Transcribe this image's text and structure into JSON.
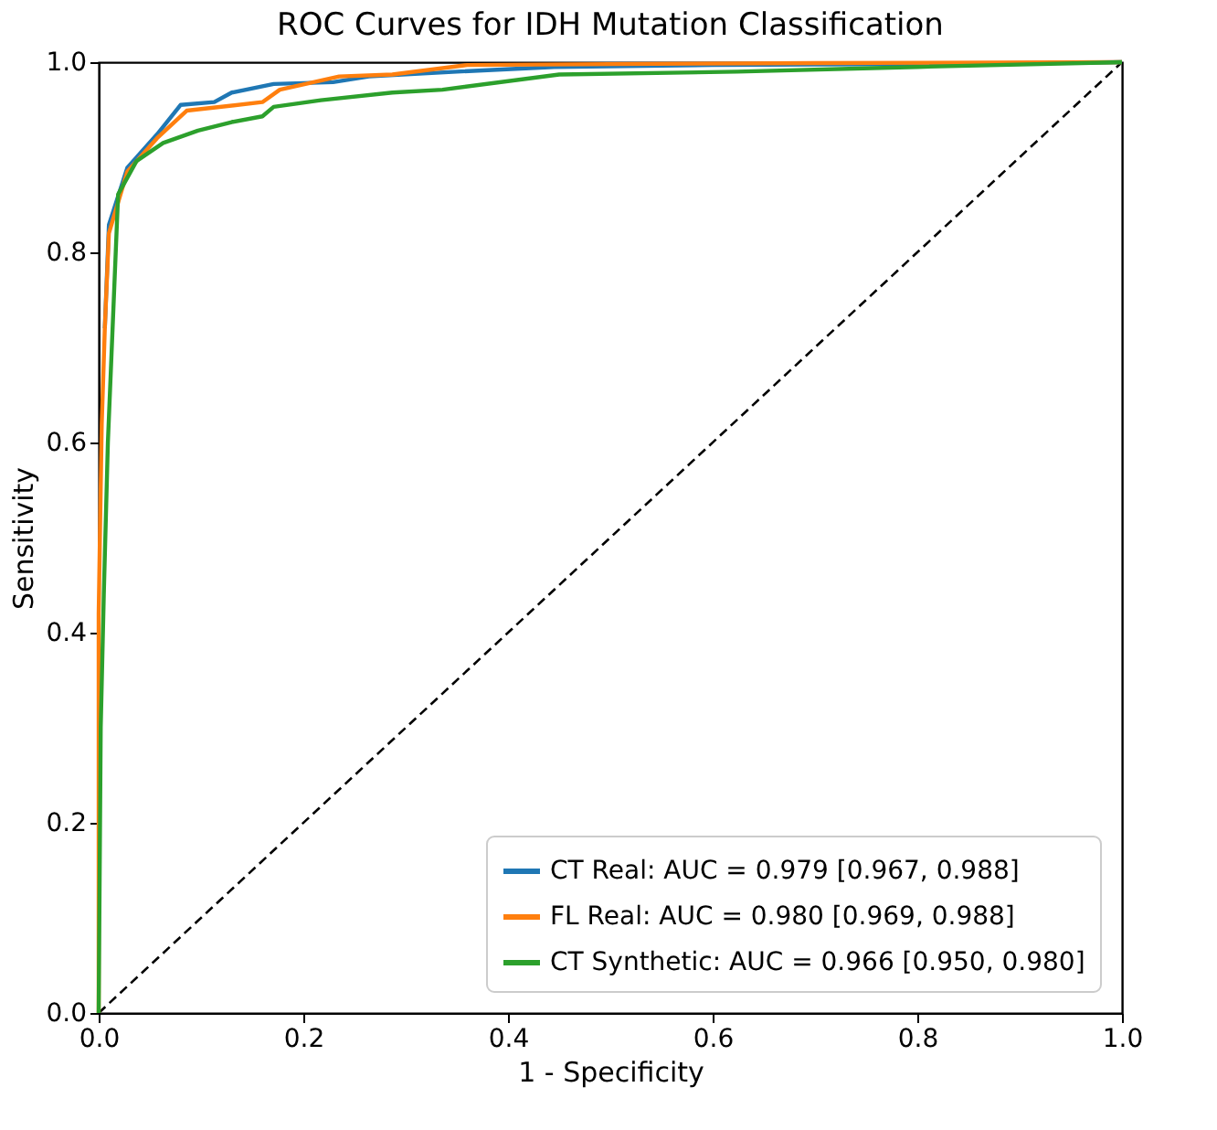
{
  "chart_data": {
    "type": "line",
    "title": "ROC Curves for IDH Mutation Classification",
    "xlabel": "1 - Specificity",
    "ylabel": "Sensitivity",
    "xlim": [
      0,
      1
    ],
    "ylim": [
      0,
      1
    ],
    "xticks": [
      {
        "value": 0,
        "label": "0.0"
      },
      {
        "value": 0.2,
        "label": "0.2"
      },
      {
        "value": 0.4,
        "label": "0.4"
      },
      {
        "value": 0.6,
        "label": "0.6"
      },
      {
        "value": 0.8,
        "label": "0.8"
      },
      {
        "value": 1,
        "label": "1.0"
      }
    ],
    "yticks": [
      {
        "value": 0,
        "label": "0.0"
      },
      {
        "value": 0.2,
        "label": "0.2"
      },
      {
        "value": 0.4,
        "label": "0.4"
      },
      {
        "value": 0.6,
        "label": "0.6"
      },
      {
        "value": 0.8,
        "label": "0.8"
      },
      {
        "value": 1,
        "label": "1.0"
      }
    ],
    "grid": false,
    "legend": "bottom right",
    "marker": "none",
    "series": [
      {
        "name": "CT Real: AUC = 0.979 [0.967, 0.988]",
        "color": "#1f77b4",
        "line_style": "solid",
        "x": [
          0.006,
          0.01,
          0.028,
          0.057,
          0.08,
          0.113,
          0.13,
          0.171,
          0.229,
          0.264,
          0.35,
          0.445,
          0.6,
          0.8,
          1
        ],
        "values": [
          0.72,
          0.829,
          0.889,
          0.924,
          0.955,
          0.958,
          0.968,
          0.977,
          0.979,
          0.985,
          0.99,
          0.995,
          0.997,
          0.998,
          1
        ]
      },
      {
        "name": "FL Real: AUC = 0.980 [0.969, 0.988]",
        "color": "#ff7f0e",
        "line_style": "solid",
        "x": [
          0,
          0,
          0.003,
          0.006,
          0.01,
          0.028,
          0.057,
          0.086,
          0.16,
          0.177,
          0.235,
          0.287,
          0.36,
          0.5,
          0.7,
          1
        ],
        "values": [
          0,
          0.42,
          0.62,
          0.72,
          0.82,
          0.885,
          0.92,
          0.949,
          0.958,
          0.971,
          0.985,
          0.987,
          0.997,
          0.998,
          0.999,
          1
        ]
      },
      {
        "name": "CT Synthetic: AUC = 0.966 [0.950, 0.980]",
        "color": "#2ca02c",
        "line_style": "solid",
        "x": [
          0,
          0.002,
          0.005,
          0.009,
          0.019,
          0.037,
          0.063,
          0.097,
          0.13,
          0.16,
          0.171,
          0.217,
          0.287,
          0.336,
          0.45,
          0.624,
          0.8,
          1
        ],
        "values": [
          0,
          0.3,
          0.44,
          0.6,
          0.861,
          0.896,
          0.915,
          0.928,
          0.937,
          0.943,
          0.953,
          0.96,
          0.968,
          0.971,
          0.987,
          0.99,
          0.995,
          1
        ]
      },
      {
        "color": "#000000",
        "line_style": "dashed",
        "x": [
          0,
          1
        ],
        "values": [
          0,
          1
        ]
      }
    ]
  }
}
